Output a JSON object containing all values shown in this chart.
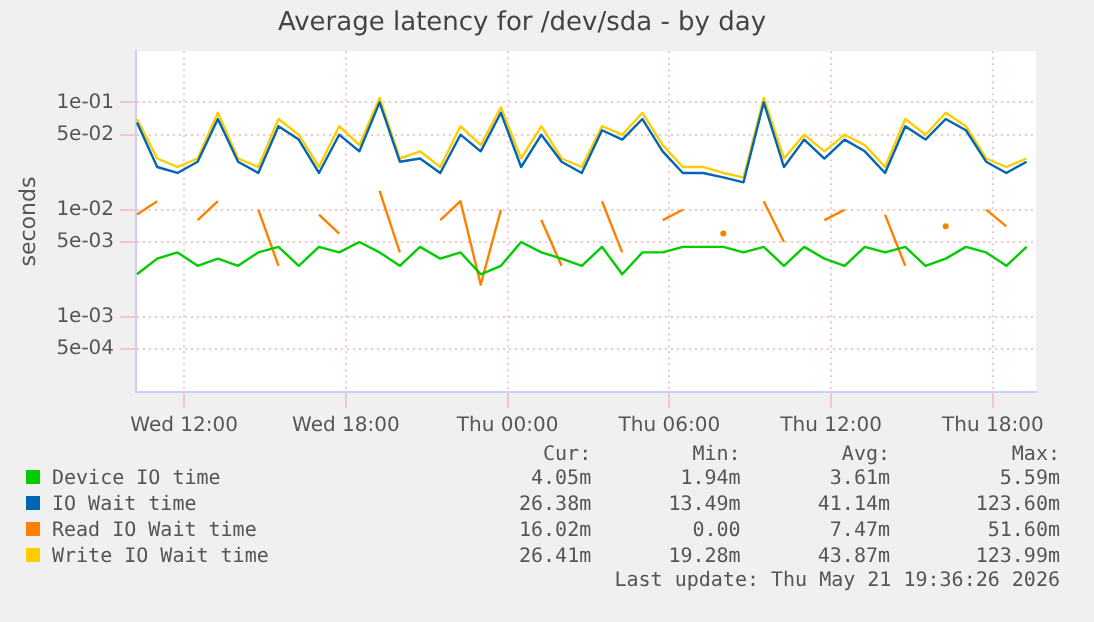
{
  "chart_data": {
    "type": "line",
    "title": "Average latency for /dev/sda - by day",
    "ylabel": "seconds",
    "x": [
      "2026-05-20T10:15",
      "2026-05-20T11:00",
      "2026-05-20T11:45",
      "2026-05-20T12:30",
      "2026-05-20T13:15",
      "2026-05-20T14:00",
      "2026-05-20T14:45",
      "2026-05-20T15:30",
      "2026-05-20T16:15",
      "2026-05-20T17:00",
      "2026-05-20T17:45",
      "2026-05-20T18:30",
      "2026-05-20T19:15",
      "2026-05-20T20:00",
      "2026-05-20T20:45",
      "2026-05-20T21:30",
      "2026-05-20T22:15",
      "2026-05-20T23:00",
      "2026-05-20T23:45",
      "2026-05-21T00:30",
      "2026-05-21T01:15",
      "2026-05-21T02:00",
      "2026-05-21T02:45",
      "2026-05-21T03:30",
      "2026-05-21T04:15",
      "2026-05-21T05:00",
      "2026-05-21T05:45",
      "2026-05-21T06:30",
      "2026-05-21T07:15",
      "2026-05-21T08:00",
      "2026-05-21T08:45",
      "2026-05-21T09:30",
      "2026-05-21T10:15",
      "2026-05-21T11:00",
      "2026-05-21T11:45",
      "2026-05-21T12:30",
      "2026-05-21T13:15",
      "2026-05-21T14:00",
      "2026-05-21T14:45",
      "2026-05-21T15:30",
      "2026-05-21T16:15",
      "2026-05-21T17:00",
      "2026-05-21T17:45",
      "2026-05-21T18:30",
      "2026-05-21T19:15"
    ],
    "series": [
      {
        "name": "Device IO time",
        "color": "#00cc00",
        "values": [
          0.0025,
          0.0035,
          0.004,
          0.003,
          0.0035,
          0.003,
          0.004,
          0.0045,
          0.003,
          0.0045,
          0.004,
          0.005,
          0.004,
          0.003,
          0.0045,
          0.0035,
          0.004,
          0.0025,
          0.003,
          0.005,
          0.004,
          0.0035,
          0.003,
          0.0045,
          0.0025,
          0.004,
          0.004,
          0.0045,
          0.0045,
          0.0045,
          0.004,
          0.0045,
          0.003,
          0.0045,
          0.0035,
          0.003,
          0.0045,
          0.004,
          0.0045,
          0.003,
          0.0035,
          0.0045,
          0.004,
          0.003,
          0.0045
        ]
      },
      {
        "name": "IO Wait time",
        "color": "#0066b3",
        "values": [
          0.065,
          0.025,
          0.022,
          0.028,
          0.07,
          0.028,
          0.022,
          0.06,
          0.045,
          0.022,
          0.05,
          0.035,
          0.1,
          0.028,
          0.03,
          0.022,
          0.05,
          0.035,
          0.08,
          0.025,
          0.05,
          0.028,
          0.022,
          0.055,
          0.045,
          0.07,
          0.035,
          0.022,
          0.022,
          0.02,
          0.018,
          0.1,
          0.025,
          0.045,
          0.03,
          0.045,
          0.035,
          0.022,
          0.06,
          0.045,
          0.07,
          0.055,
          0.028,
          0.022,
          0.028
        ]
      },
      {
        "name": "Read IO Wait time",
        "color": "#ff8000",
        "values": [
          0.009,
          0.012,
          null,
          0.008,
          0.012,
          null,
          0.01,
          0.003,
          null,
          0.009,
          0.006,
          null,
          0.015,
          0.004,
          null,
          0.008,
          0.012,
          0.002,
          0.01,
          null,
          0.008,
          0.003,
          null,
          0.012,
          0.004,
          null,
          0.008,
          0.01,
          null,
          0.006,
          null,
          0.012,
          0.005,
          null,
          0.008,
          0.01,
          null,
          0.009,
          0.003,
          null,
          0.007,
          null,
          0.01,
          0.007,
          null
        ]
      },
      {
        "name": "Write IO Wait time",
        "color": "#ffcc00",
        "values": [
          0.07,
          0.03,
          0.025,
          0.03,
          0.08,
          0.03,
          0.025,
          0.07,
          0.05,
          0.025,
          0.06,
          0.04,
          0.11,
          0.03,
          0.035,
          0.025,
          0.06,
          0.04,
          0.09,
          0.03,
          0.06,
          0.03,
          0.025,
          0.06,
          0.05,
          0.08,
          0.04,
          0.025,
          0.025,
          0.022,
          0.02,
          0.11,
          0.03,
          0.05,
          0.035,
          0.05,
          0.04,
          0.025,
          0.07,
          0.05,
          0.08,
          0.06,
          0.03,
          0.025,
          0.03
        ]
      }
    ],
    "log": "y",
    "ylim": [
      0.0002,
      0.3
    ],
    "yticks": [
      {
        "value": 0.0005,
        "label": "5e-04"
      },
      {
        "value": 0.001,
        "label": "1e-03"
      },
      {
        "value": 0.005,
        "label": "5e-03"
      },
      {
        "value": 0.01,
        "label": "1e-02"
      },
      {
        "value": 0.05,
        "label": "5e-02"
      },
      {
        "value": 0.1,
        "label": "1e-01"
      }
    ],
    "xlim": [
      "2026-05-20T10:13",
      "2026-05-21T19:36"
    ],
    "xticks": [
      {
        "value": "2026-05-20T12:00",
        "label": "Wed 12:00"
      },
      {
        "value": "2026-05-20T18:00",
        "label": "Wed 18:00"
      },
      {
        "value": "2026-05-21T00:00",
        "label": "Thu 00:00"
      },
      {
        "value": "2026-05-21T06:00",
        "label": "Thu 06:00"
      },
      {
        "value": "2026-05-21T12:00",
        "label": "Thu 12:00"
      },
      {
        "value": "2026-05-21T18:00",
        "label": "Thu 18:00"
      }
    ],
    "grid": true,
    "legend": "bottom",
    "annotations": [
      "Cur:",
      "Min:",
      "Avg:",
      "Max:",
      "4.05m",
      "1.94m",
      "3.61m",
      "5.59m",
      "26.38m",
      "13.49m",
      "41.14m",
      "123.60m",
      "16.02m",
      "0.00",
      "7.47m",
      "51.60m",
      "26.41m",
      "19.28m",
      "43.87m",
      "123.99m",
      "Last update: Thu May 21 19:36:26 2026"
    ]
  }
}
